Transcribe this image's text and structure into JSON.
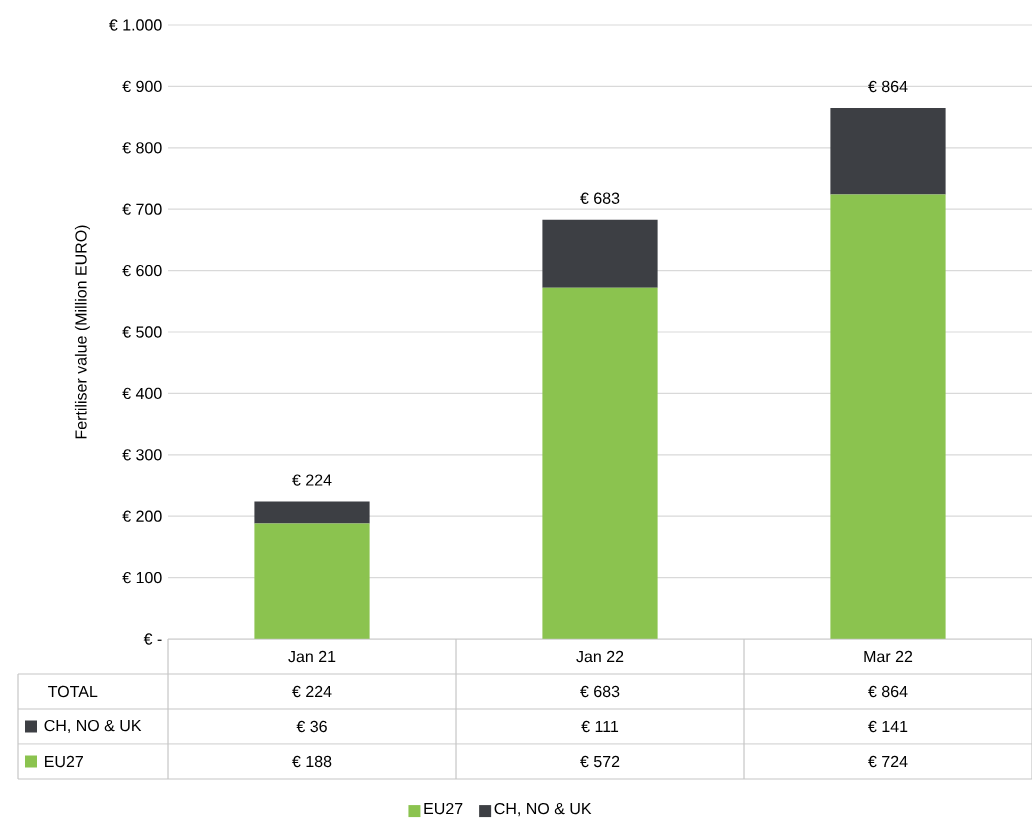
{
  "chart_data": {
    "type": "bar",
    "stacked": true,
    "ylabel": "Fertiliser value (Million EURO)",
    "categories": [
      "Jan 21",
      "Jan 22",
      "Mar 22"
    ],
    "series": [
      {
        "name": "EU27",
        "color": "#8bc34f",
        "values": [
          188,
          572,
          724
        ],
        "value_labels": [
          "€ 188",
          "€ 572",
          "€ 724"
        ]
      },
      {
        "name": "CH, NO & UK",
        "color": "#3d3f44",
        "values": [
          36,
          111,
          141
        ],
        "value_labels": [
          "€ 36",
          "€ 111",
          "€ 141"
        ]
      }
    ],
    "totals": [
      "€ 224",
      "€ 683",
      "€ 864"
    ],
    "annotations": [
      "TOTAL"
    ],
    "ylim": [
      0,
      1000
    ],
    "yticks": [
      {
        "value": 0,
        "label": "€ -"
      },
      {
        "value": 100,
        "label": "€ 100"
      },
      {
        "value": 200,
        "label": "€ 200"
      },
      {
        "value": 300,
        "label": "€ 300"
      },
      {
        "value": 400,
        "label": "€ 400"
      },
      {
        "value": 500,
        "label": "€ 500"
      },
      {
        "value": 600,
        "label": "€ 600"
      },
      {
        "value": 700,
        "label": "€ 700"
      },
      {
        "value": 800,
        "label": "€ 800"
      },
      {
        "value": 900,
        "label": "€ 900"
      },
      {
        "value": 1000,
        "label": "€ 1.000"
      }
    ],
    "grid": "y",
    "legend": "bottom"
  }
}
